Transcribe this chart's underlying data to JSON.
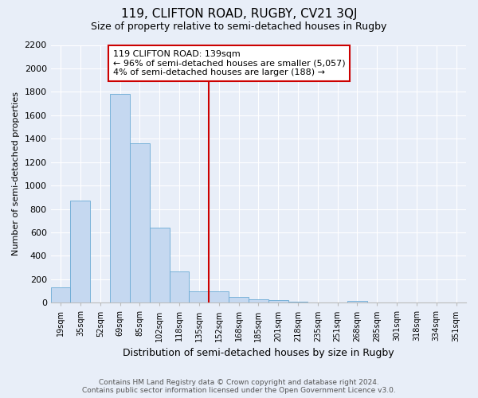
{
  "title": "119, CLIFTON ROAD, RUGBY, CV21 3QJ",
  "subtitle": "Size of property relative to semi-detached houses in Rugby",
  "xlabel": "Distribution of semi-detached houses by size in Rugby",
  "ylabel": "Number of semi-detached properties",
  "footer_line1": "Contains HM Land Registry data © Crown copyright and database right 2024.",
  "footer_line2": "Contains public sector information licensed under the Open Government Licence v3.0.",
  "bar_labels": [
    "19sqm",
    "35sqm",
    "52sqm",
    "69sqm",
    "85sqm",
    "102sqm",
    "118sqm",
    "135sqm",
    "152sqm",
    "168sqm",
    "185sqm",
    "201sqm",
    "218sqm",
    "235sqm",
    "251sqm",
    "268sqm",
    "285sqm",
    "301sqm",
    "318sqm",
    "334sqm",
    "351sqm"
  ],
  "bar_heights": [
    130,
    870,
    5,
    1780,
    1360,
    640,
    270,
    100,
    95,
    50,
    30,
    20,
    10,
    0,
    0,
    15,
    0,
    0,
    0,
    0,
    0
  ],
  "bar_color": "#c5d8f0",
  "bar_edge_color": "#6aaad4",
  "background_color": "#e8eef8",
  "grid_color": "#ffffff",
  "vline_color": "#cc0000",
  "annotation_box_color": "#cc0000",
  "annotation_line1": "119 CLIFTON ROAD: 139sqm",
  "annotation_line2": "← 96% of semi-detached houses are smaller (5,057)",
  "annotation_line3": "4% of semi-detached houses are larger (188) →",
  "ylim_max": 2200,
  "yticks": [
    0,
    200,
    400,
    600,
    800,
    1000,
    1200,
    1400,
    1600,
    1800,
    2000,
    2200
  ],
  "vline_bar_index": 7.5
}
